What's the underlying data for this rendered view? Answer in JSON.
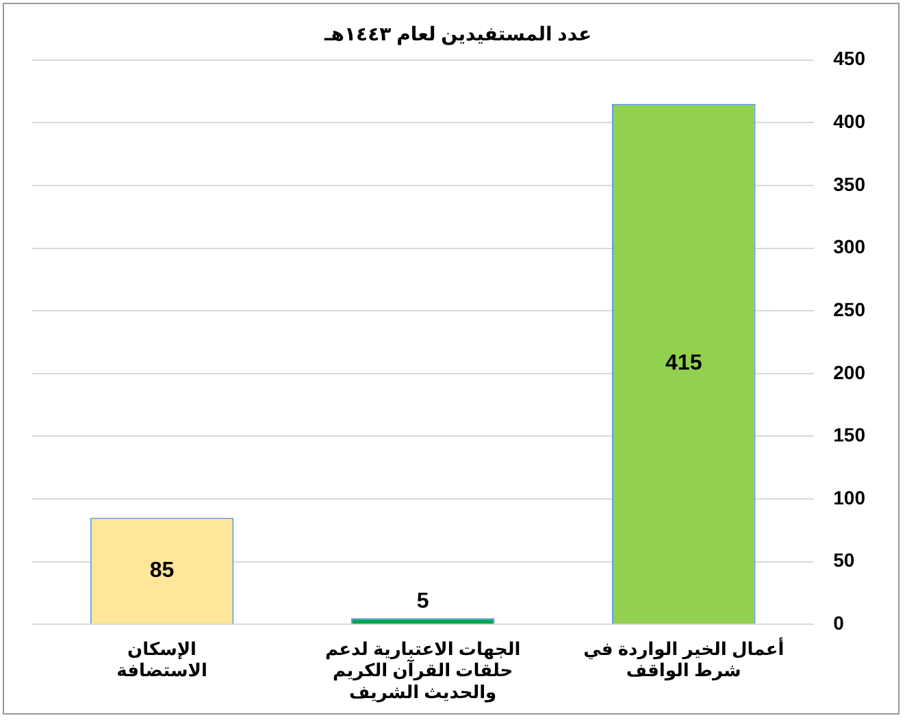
{
  "chart_data": {
    "type": "bar",
    "title": "عدد المستفيدين لعام ١٤٤٣هـ",
    "categories": [
      "الإسكان\nالاستضافة",
      "الجهات الاعتبارية لدعم\nحلقات القرآن الكريم\nوالحديث الشريف",
      "أعمال الخير الواردة في\nشرط الواقف"
    ],
    "values": [
      85,
      5,
      415
    ],
    "colors": [
      "#ffe699",
      "#00a650",
      "#92d050"
    ],
    "ylim": [
      0,
      450
    ],
    "yticks": [
      0,
      50,
      100,
      150,
      200,
      250,
      300,
      350,
      400,
      450
    ],
    "grid": "y",
    "data_labels": true,
    "legend": false
  }
}
